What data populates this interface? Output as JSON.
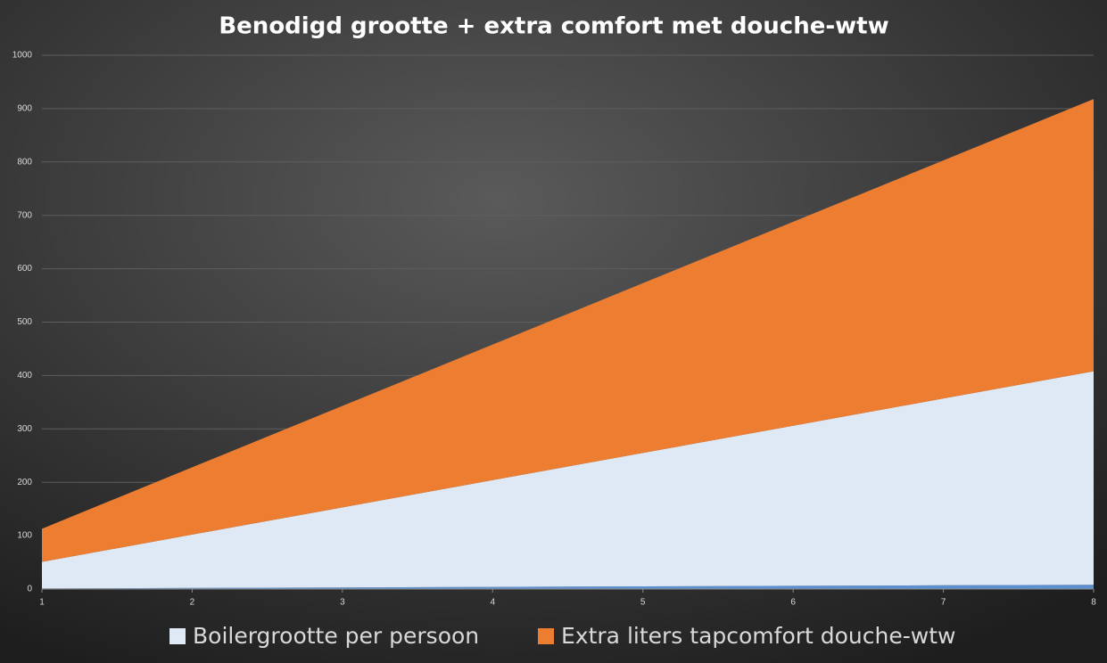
{
  "chart_data": {
    "type": "stacked-area",
    "title": "Benodigd grootte + extra comfort met douche-wtw",
    "x": [
      1,
      2,
      3,
      4,
      5,
      6,
      7,
      8
    ],
    "series": [
      {
        "color": "#5b8fd0",
        "values": [
          1,
          2,
          3,
          4,
          5,
          6,
          7,
          8
        ]
      },
      {
        "name": "Boilergrootte per persoon",
        "color": "#dfe9f5",
        "values": [
          50,
          100,
          150,
          200,
          250,
          300,
          350,
          400
        ]
      },
      {
        "name": "Extra liters tapcomfort douche-wtw",
        "color": "#ed7d31",
        "values": [
          62,
          126,
          190,
          254,
          318,
          382,
          446,
          510
        ]
      }
    ],
    "xlim": [
      1,
      8
    ],
    "xticks": [
      1,
      2,
      3,
      4,
      5,
      6,
      7,
      8
    ],
    "ylim": [
      0,
      1000
    ],
    "yticks": [
      0,
      100,
      200,
      300,
      400,
      500,
      600,
      700,
      800,
      900,
      1000
    ],
    "grid": true,
    "legend": "bottom"
  }
}
